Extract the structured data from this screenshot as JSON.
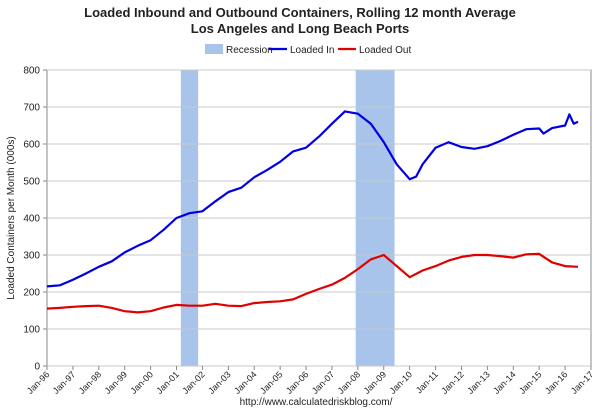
{
  "chart_data": {
    "type": "line",
    "title": "Loaded Inbound and Outbound Containers, Rolling 12 month Average",
    "subtitle": "Los Angeles and Long Beach Ports",
    "ylabel": "Loaded Containers per Month (000s)",
    "xlabel": "",
    "ylim": [
      0,
      800
    ],
    "yticks": [
      0,
      100,
      200,
      300,
      400,
      500,
      600,
      700,
      800
    ],
    "xlim": [
      "1996-01",
      "2017-01"
    ],
    "xticks": [
      "Jan-96",
      "Jan-97",
      "Jan-98",
      "Jan-99",
      "Jan-00",
      "Jan-01",
      "Jan-02",
      "Jan-03",
      "Jan-04",
      "Jan-05",
      "Jan-06",
      "Jan-07",
      "Jan-08",
      "Jan-09",
      "Jan-10",
      "Jan-11",
      "Jan-12",
      "Jan-13",
      "Jan-14",
      "Jan-15",
      "Jan-16",
      "Jan-17"
    ],
    "grid": true,
    "legend": {
      "position": "top-center",
      "entries": [
        "Recession",
        "Loaded In",
        "Loaded Out"
      ]
    },
    "recessions": [
      {
        "name": "Recession",
        "start": "2001-03",
        "end": "2001-11",
        "color": "#a9c4ea"
      },
      {
        "name": "Recession",
        "start": "2007-12",
        "end": "2009-06",
        "color": "#a9c4ea"
      }
    ],
    "series": [
      {
        "name": "Loaded In",
        "color": "#0000e0",
        "points": [
          [
            "1996-01",
            215
          ],
          [
            "1996-07",
            218
          ],
          [
            "1997-01",
            233
          ],
          [
            "1997-07",
            250
          ],
          [
            "1998-01",
            268
          ],
          [
            "1998-07",
            283
          ],
          [
            "1999-01",
            307
          ],
          [
            "1999-07",
            325
          ],
          [
            "2000-01",
            340
          ],
          [
            "2000-07",
            368
          ],
          [
            "2001-01",
            400
          ],
          [
            "2001-07",
            413
          ],
          [
            "2002-01",
            418
          ],
          [
            "2002-07",
            445
          ],
          [
            "2003-01",
            470
          ],
          [
            "2003-07",
            482
          ],
          [
            "2004-01",
            510
          ],
          [
            "2004-07",
            530
          ],
          [
            "2005-01",
            552
          ],
          [
            "2005-07",
            580
          ],
          [
            "2006-01",
            590
          ],
          [
            "2006-07",
            620
          ],
          [
            "2007-01",
            655
          ],
          [
            "2007-07",
            688
          ],
          [
            "2008-01",
            682
          ],
          [
            "2008-07",
            655
          ],
          [
            "2009-01",
            605
          ],
          [
            "2009-07",
            545
          ],
          [
            "2010-01",
            505
          ],
          [
            "2010-04",
            512
          ],
          [
            "2010-07",
            545
          ],
          [
            "2011-01",
            590
          ],
          [
            "2011-07",
            605
          ],
          [
            "2012-01",
            592
          ],
          [
            "2012-07",
            587
          ],
          [
            "2013-01",
            594
          ],
          [
            "2013-07",
            608
          ],
          [
            "2014-01",
            625
          ],
          [
            "2014-07",
            640
          ],
          [
            "2015-01",
            642
          ],
          [
            "2015-03",
            628
          ],
          [
            "2015-07",
            643
          ],
          [
            "2016-01",
            650
          ],
          [
            "2016-03",
            680
          ],
          [
            "2016-05",
            655
          ],
          [
            "2016-07",
            660
          ]
        ]
      },
      {
        "name": "Loaded Out",
        "color": "#e00000",
        "points": [
          [
            "1996-01",
            155
          ],
          [
            "1996-07",
            157
          ],
          [
            "1997-01",
            160
          ],
          [
            "1997-07",
            162
          ],
          [
            "1998-01",
            163
          ],
          [
            "1998-07",
            157
          ],
          [
            "1999-01",
            148
          ],
          [
            "1999-07",
            145
          ],
          [
            "2000-01",
            148
          ],
          [
            "2000-07",
            158
          ],
          [
            "2001-01",
            165
          ],
          [
            "2001-07",
            163
          ],
          [
            "2002-01",
            163
          ],
          [
            "2002-07",
            168
          ],
          [
            "2003-01",
            163
          ],
          [
            "2003-07",
            162
          ],
          [
            "2004-01",
            170
          ],
          [
            "2004-07",
            173
          ],
          [
            "2005-01",
            175
          ],
          [
            "2005-07",
            180
          ],
          [
            "2006-01",
            195
          ],
          [
            "2006-07",
            208
          ],
          [
            "2007-01",
            220
          ],
          [
            "2007-07",
            238
          ],
          [
            "2008-01",
            262
          ],
          [
            "2008-07",
            288
          ],
          [
            "2009-01",
            300
          ],
          [
            "2009-07",
            270
          ],
          [
            "2010-01",
            240
          ],
          [
            "2010-07",
            258
          ],
          [
            "2011-01",
            270
          ],
          [
            "2011-07",
            285
          ],
          [
            "2012-01",
            295
          ],
          [
            "2012-07",
            300
          ],
          [
            "2013-01",
            300
          ],
          [
            "2013-07",
            297
          ],
          [
            "2014-01",
            293
          ],
          [
            "2014-07",
            302
          ],
          [
            "2015-01",
            303
          ],
          [
            "2015-07",
            280
          ],
          [
            "2016-01",
            270
          ],
          [
            "2016-07",
            268
          ]
        ]
      }
    ],
    "footer": "http://www.calculatedriskblog.com/"
  }
}
